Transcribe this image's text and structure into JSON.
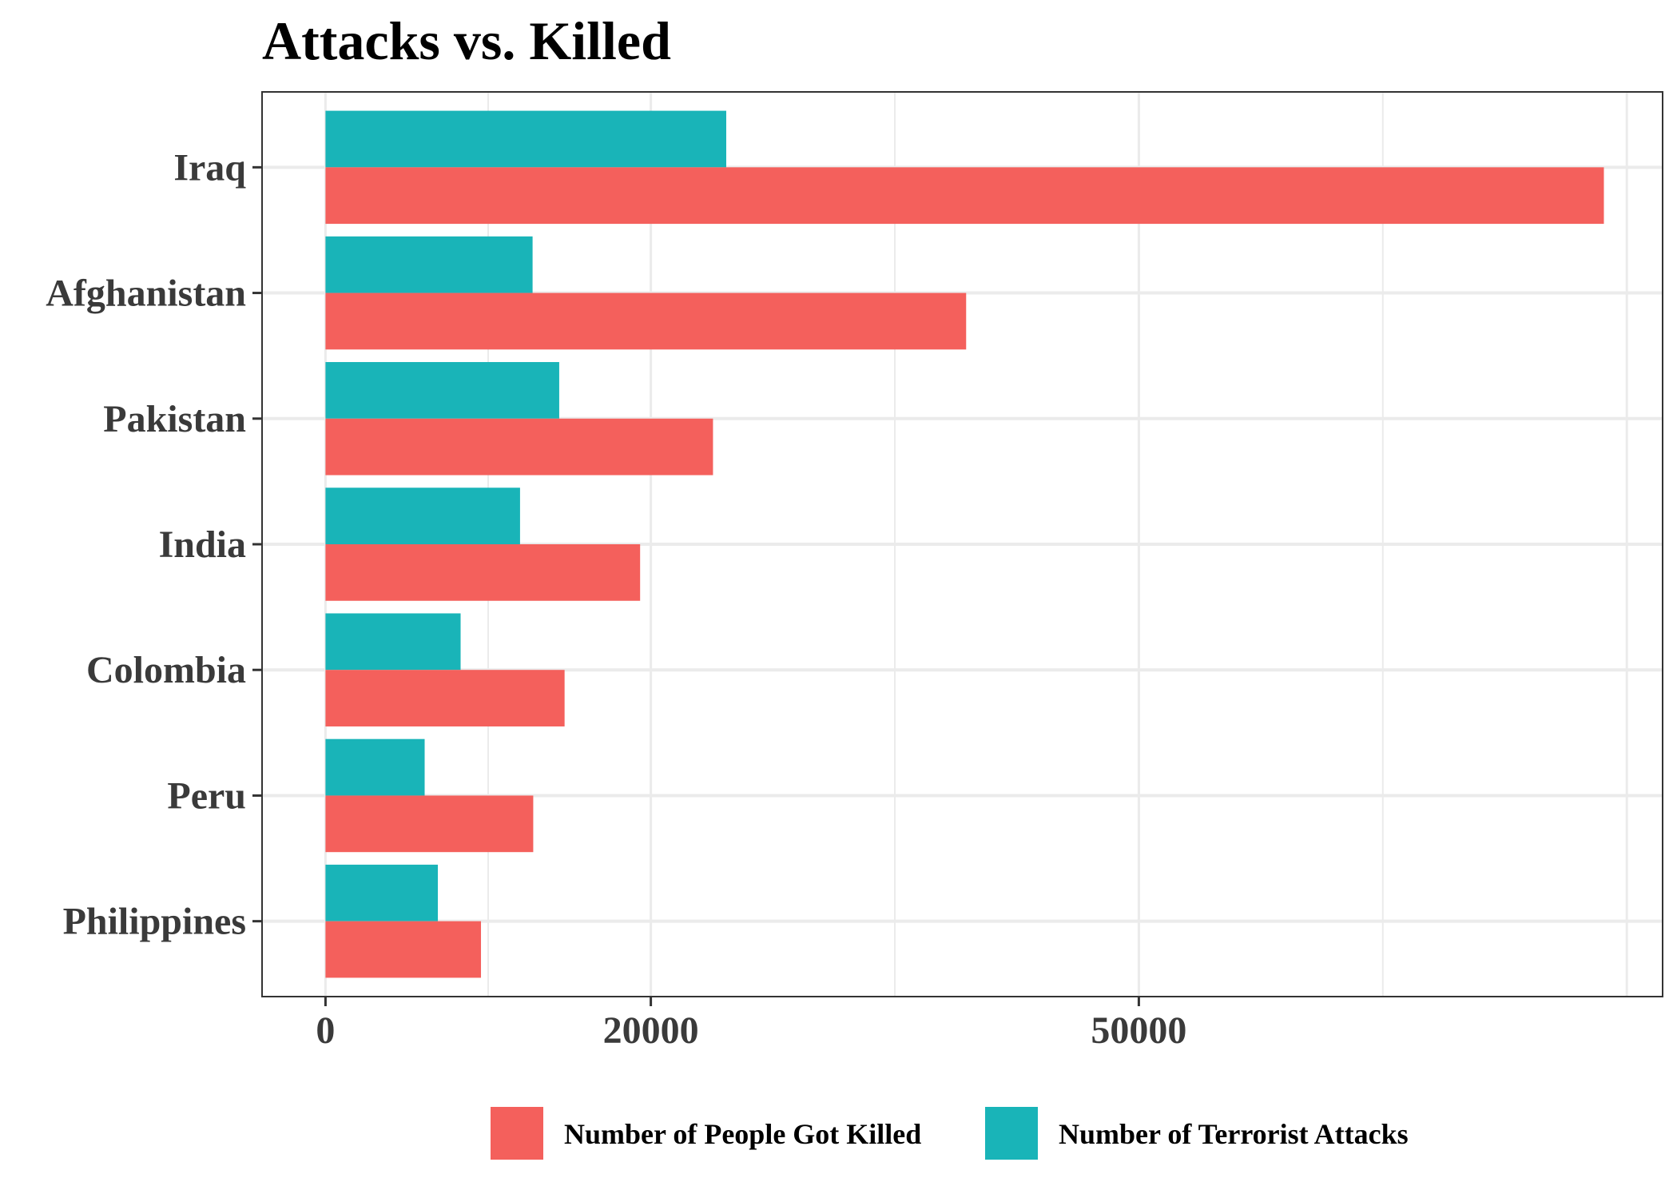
{
  "chart_data": {
    "type": "bar",
    "orientation": "horizontal",
    "title": "Attacks vs. Killed",
    "xlabel": "",
    "ylabel": "",
    "categories": [
      "Iraq",
      "Afghanistan",
      "Pakistan",
      "India",
      "Colombia",
      "Peru",
      "Philippines"
    ],
    "series": [
      {
        "name": "Number of Terrorist Attacks",
        "color": "#19B4B8",
        "values": [
          24636,
          12731,
          14368,
          11960,
          8306,
          6096,
          6908
        ]
      },
      {
        "name": "Number of People Got Killed",
        "color": "#F4605C",
        "values": [
          78589,
          39384,
          23822,
          19341,
          14698,
          12771,
          9559
        ]
      }
    ],
    "xticks": [
      0,
      20000,
      50000
    ],
    "xlim": [
      -3900,
      82200
    ],
    "grid": true,
    "legend_position": "bottom"
  }
}
